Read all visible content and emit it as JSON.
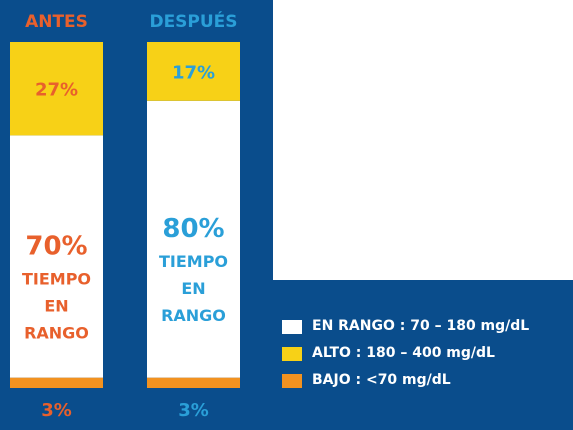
{
  "chart_data": {
    "type": "bar",
    "stacked": true,
    "categories": [
      "ANTES",
      "DESPUÉS"
    ],
    "series": [
      {
        "name": "BAJO : <70 mg/dL",
        "values": [
          3,
          3
        ],
        "labels": [
          "3%",
          "3%"
        ],
        "color": "#f29220"
      },
      {
        "name": "EN RANGO : 70 – 180 mg/dL",
        "values": [
          70,
          80
        ],
        "labels": [
          "70%",
          "80%"
        ],
        "color": "#ffffff"
      },
      {
        "name": "ALTO : 180 – 400 mg/dL",
        "values": [
          27,
          17
        ],
        "labels": [
          "27%",
          "17%"
        ],
        "color": "#f7d117"
      }
    ],
    "range_caption": [
      "TIEMPO",
      "EN",
      "RANGO"
    ],
    "category_colors": [
      "#e8602c",
      "#2a9fd8"
    ],
    "ylim": [
      0,
      100
    ],
    "legend_position": "bottom-right",
    "legend_order": [
      1,
      2,
      0
    ]
  },
  "colors": {
    "background": "#0a4d8c",
    "panel": "#ffffff"
  }
}
